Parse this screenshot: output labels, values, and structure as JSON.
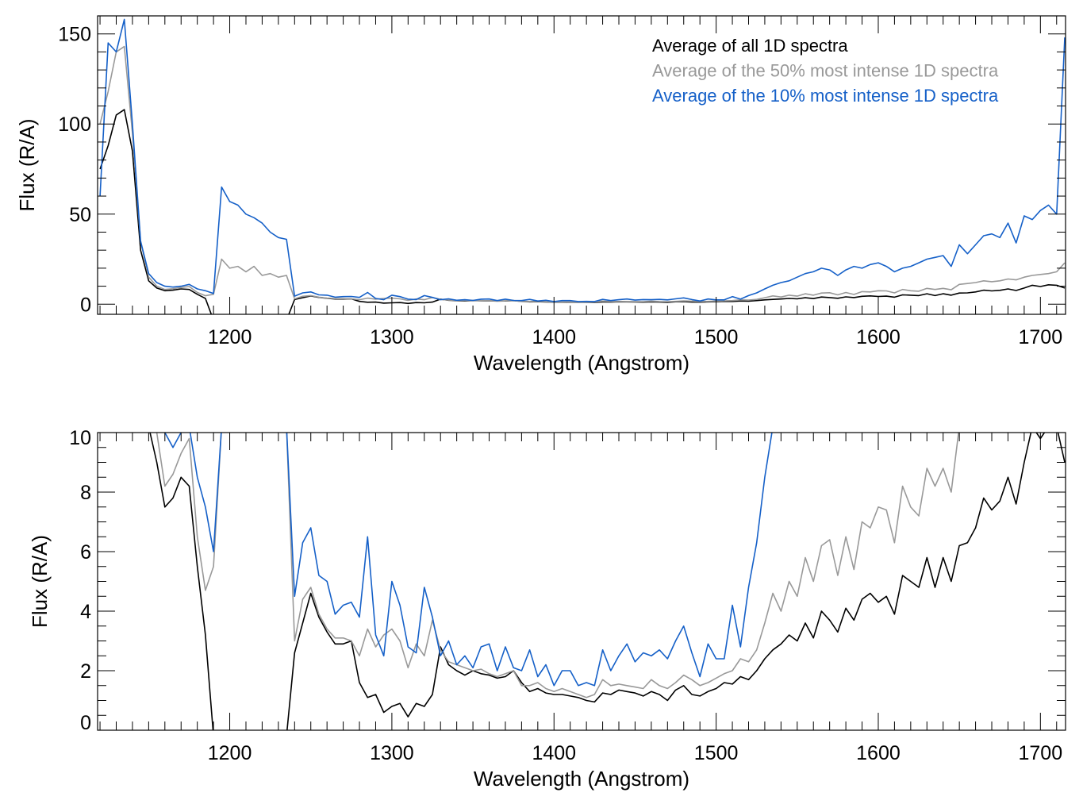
{
  "chart_data": {
    "type": "line",
    "xlabel": "Wavelength (Angstrom)",
    "ylabel": "Flux (R/A)",
    "legend_placement": "top-right",
    "grid": false,
    "series_colors": [
      "#000000",
      "#999999",
      "#1560c8"
    ],
    "x": [
      1120,
      1125,
      1130,
      1135,
      1140,
      1145,
      1150,
      1155,
      1160,
      1165,
      1170,
      1175,
      1180,
      1185,
      1190,
      1195,
      1200,
      1205,
      1210,
      1215,
      1220,
      1225,
      1230,
      1235,
      1240,
      1245,
      1250,
      1255,
      1260,
      1265,
      1270,
      1275,
      1280,
      1285,
      1290,
      1295,
      1300,
      1305,
      1310,
      1315,
      1320,
      1325,
      1330,
      1335,
      1340,
      1345,
      1350,
      1355,
      1360,
      1365,
      1370,
      1375,
      1380,
      1385,
      1390,
      1395,
      1400,
      1405,
      1410,
      1415,
      1420,
      1425,
      1430,
      1435,
      1440,
      1445,
      1450,
      1455,
      1460,
      1465,
      1470,
      1475,
      1480,
      1485,
      1490,
      1495,
      1500,
      1505,
      1510,
      1515,
      1520,
      1525,
      1530,
      1535,
      1540,
      1545,
      1550,
      1555,
      1560,
      1565,
      1570,
      1575,
      1580,
      1585,
      1590,
      1595,
      1600,
      1605,
      1610,
      1615,
      1620,
      1625,
      1630,
      1635,
      1640,
      1645,
      1650,
      1655,
      1660,
      1665,
      1670,
      1675,
      1680,
      1685,
      1690,
      1695,
      1700,
      1705,
      1710,
      1715
    ],
    "series": [
      {
        "name": "Average of all 1D spectra",
        "color": "#000000",
        "values": [
          75,
          88,
          105,
          108,
          85,
          30,
          13,
          9.0,
          7.5,
          7.8,
          8.5,
          8.2,
          5.5,
          3.2,
          -20,
          -20,
          -20,
          -20,
          -20,
          -20,
          -20,
          -20,
          -20,
          -20,
          2.6,
          3.6,
          4.6,
          3.8,
          3.3,
          2.9,
          2.9,
          3.0,
          1.6,
          1.1,
          1.2,
          0.6,
          0.8,
          0.9,
          0.45,
          0.9,
          0.8,
          1.2,
          2.8,
          2.2,
          2.0,
          1.85,
          2.0,
          1.9,
          1.85,
          1.75,
          1.8,
          2.0,
          1.6,
          1.3,
          1.4,
          1.25,
          1.2,
          1.2,
          1.15,
          1.1,
          1.0,
          0.95,
          1.25,
          1.2,
          1.35,
          1.3,
          1.25,
          1.15,
          1.3,
          1.2,
          1.0,
          1.35,
          1.5,
          1.2,
          1.15,
          1.3,
          1.4,
          1.6,
          1.55,
          1.8,
          1.7,
          2.0,
          2.4,
          2.7,
          2.9,
          3.2,
          3.0,
          3.6,
          3.1,
          4.0,
          3.7,
          3.3,
          4.1,
          3.7,
          4.4,
          4.6,
          4.3,
          4.5,
          3.9,
          5.2,
          5.0,
          4.8,
          5.8,
          4.8,
          5.8,
          5.0,
          6.2,
          6.3,
          6.8,
          7.8,
          7.4,
          7.7,
          8.5,
          7.6,
          9.0,
          10.5,
          9.8,
          10.8,
          10.5,
          9.0
        ]
      },
      {
        "name": "Average of the 50% most intense 1D spectra",
        "color": "#999999",
        "values": [
          100,
          118,
          140,
          143,
          95,
          35,
          15,
          10,
          8.2,
          8.6,
          9.3,
          9.8,
          6.5,
          4.7,
          5.5,
          25,
          20,
          21,
          18,
          21,
          16,
          17,
          15,
          16,
          3.0,
          4.4,
          4.8,
          3.9,
          3.4,
          3.1,
          3.1,
          3.0,
          2.5,
          3.4,
          2.8,
          3.2,
          3.4,
          3.0,
          2.1,
          2.9,
          2.5,
          3.7,
          2.7,
          2.3,
          2.2,
          2.1,
          2.0,
          2.05,
          1.9,
          1.8,
          1.9,
          2.0,
          1.5,
          1.5,
          1.6,
          1.4,
          1.3,
          1.4,
          1.3,
          1.2,
          1.1,
          1.2,
          1.7,
          1.5,
          1.55,
          1.5,
          1.45,
          1.4,
          1.7,
          1.5,
          1.4,
          1.6,
          1.85,
          1.7,
          1.5,
          1.6,
          1.75,
          1.9,
          2.0,
          2.4,
          2.3,
          2.7,
          3.6,
          4.6,
          4.0,
          5.0,
          4.5,
          5.8,
          5.0,
          6.2,
          6.4,
          5.2,
          6.5,
          5.4,
          7.0,
          6.8,
          7.5,
          7.4,
          6.3,
          8.2,
          7.5,
          7.2,
          8.8,
          8.2,
          8.8,
          8.0,
          11,
          11.5,
          12,
          13,
          12.5,
          13,
          14,
          13.5,
          15,
          16,
          16.5,
          17,
          18,
          23
        ]
      },
      {
        "name": "Average of the 10% most intense 1D spectra",
        "color": "#1560c8",
        "values": [
          60,
          145,
          140,
          158,
          100,
          35,
          17,
          12,
          10,
          9.5,
          10,
          11,
          8.5,
          7.5,
          6,
          65,
          57,
          55,
          50,
          48,
          45,
          40,
          37,
          36,
          4.5,
          6.3,
          6.8,
          5.2,
          5.0,
          3.9,
          4.2,
          4.3,
          3.8,
          6.5,
          3.2,
          2.5,
          5.0,
          4.2,
          2.8,
          2.6,
          4.8,
          3.8,
          2.5,
          3.0,
          2.2,
          2.5,
          2.1,
          2.8,
          2.9,
          2.0,
          2.8,
          2.1,
          2.0,
          2.7,
          1.8,
          2.2,
          1.5,
          2.0,
          2.0,
          1.5,
          1.6,
          1.5,
          2.7,
          2.0,
          2.5,
          2.9,
          2.3,
          2.6,
          2.5,
          2.7,
          2.4,
          3.0,
          3.5,
          2.6,
          1.8,
          2.9,
          2.4,
          2.4,
          4.2,
          2.8,
          4.8,
          6.3,
          8.5,
          10.5,
          12,
          13,
          15,
          17,
          18,
          20,
          19,
          16,
          19,
          21,
          20,
          22,
          23,
          21,
          18,
          20,
          21,
          23,
          25,
          26,
          27,
          21,
          33,
          28,
          33,
          38,
          39,
          37,
          45,
          34,
          49,
          47,
          52,
          55,
          50,
          148
        ]
      }
    ],
    "panels": [
      {
        "xlim": [
          1118.5,
          1715.5
        ],
        "ylim": [
          -5.6,
          160
        ],
        "x_ticks": [
          1200,
          1300,
          1400,
          1500,
          1600,
          1700
        ],
        "x_tick_labels": [
          "1200",
          "1300",
          "1400",
          "1500",
          "1600",
          "1700"
        ],
        "y_ticks": [
          0,
          50,
          100,
          150
        ],
        "y_tick_labels": [
          "0",
          "50",
          "100",
          "150"
        ],
        "x_minor_step": 10,
        "y_minor_step": 10,
        "xlabel": "Wavelength (Angstrom)",
        "ylabel": "Flux (R/A)",
        "legend": true
      },
      {
        "xlim": [
          1118.5,
          1715.5
        ],
        "ylim": [
          0,
          10
        ],
        "x_ticks": [
          1200,
          1300,
          1400,
          1500,
          1600,
          1700
        ],
        "x_tick_labels": [
          "1200",
          "1300",
          "1400",
          "1500",
          "1600",
          "1700"
        ],
        "y_ticks": [
          0,
          2,
          4,
          6,
          8,
          10
        ],
        "y_tick_labels": [
          "0",
          "2",
          "4",
          "6",
          "8",
          "10"
        ],
        "x_minor_step": 10,
        "y_minor_step": 0.5,
        "xlabel": "Wavelength (Angstrom)",
        "ylabel": "Flux (R/A)",
        "legend": false
      }
    ],
    "legend": [
      "Average of all 1D spectra",
      "Average of the 50% most intense 1D spectra",
      "Average of the 10% most intense 1D spectra"
    ]
  }
}
